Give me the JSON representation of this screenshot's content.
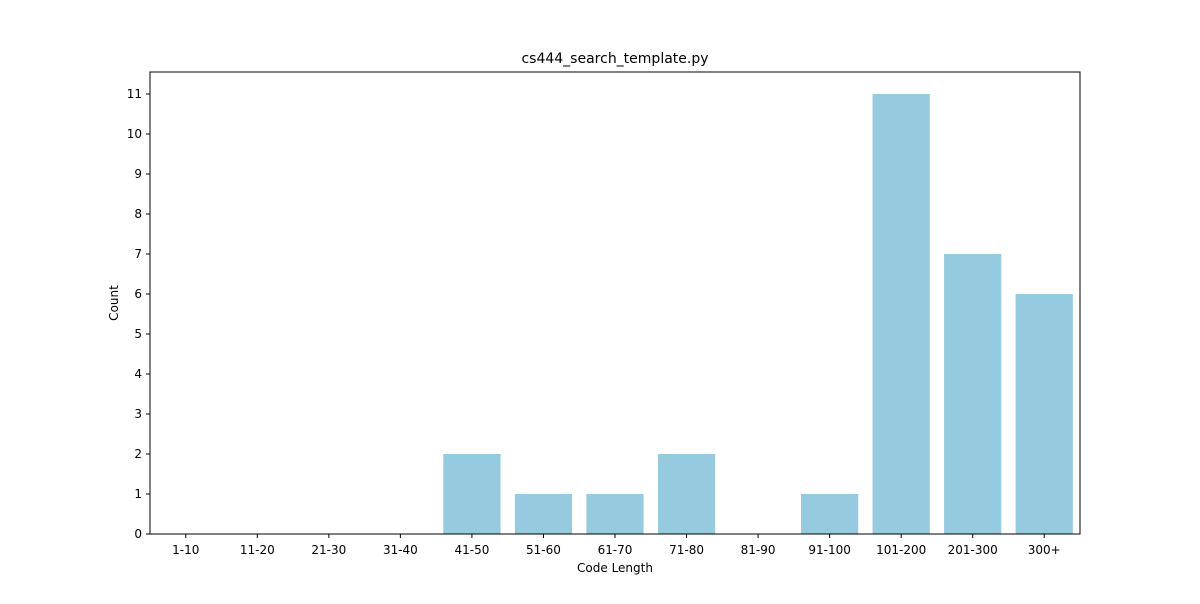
{
  "chart_data": {
    "type": "bar",
    "title": "cs444_search_template.py",
    "xlabel": "Code Length",
    "ylabel": "Count",
    "categories": [
      "1-10",
      "11-20",
      "21-30",
      "31-40",
      "41-50",
      "51-60",
      "61-70",
      "71-80",
      "81-90",
      "91-100",
      "101-200",
      "201-300",
      "300+"
    ],
    "values": [
      0,
      0,
      0,
      0,
      2,
      1,
      1,
      2,
      0,
      1,
      11,
      7,
      6
    ],
    "yticks": [
      "0",
      "1",
      "2",
      "3",
      "4",
      "5",
      "6",
      "7",
      "8",
      "9",
      "10",
      "11"
    ],
    "ylim": [
      0,
      11.55
    ],
    "grid": false,
    "bar_color": "#96cade"
  }
}
